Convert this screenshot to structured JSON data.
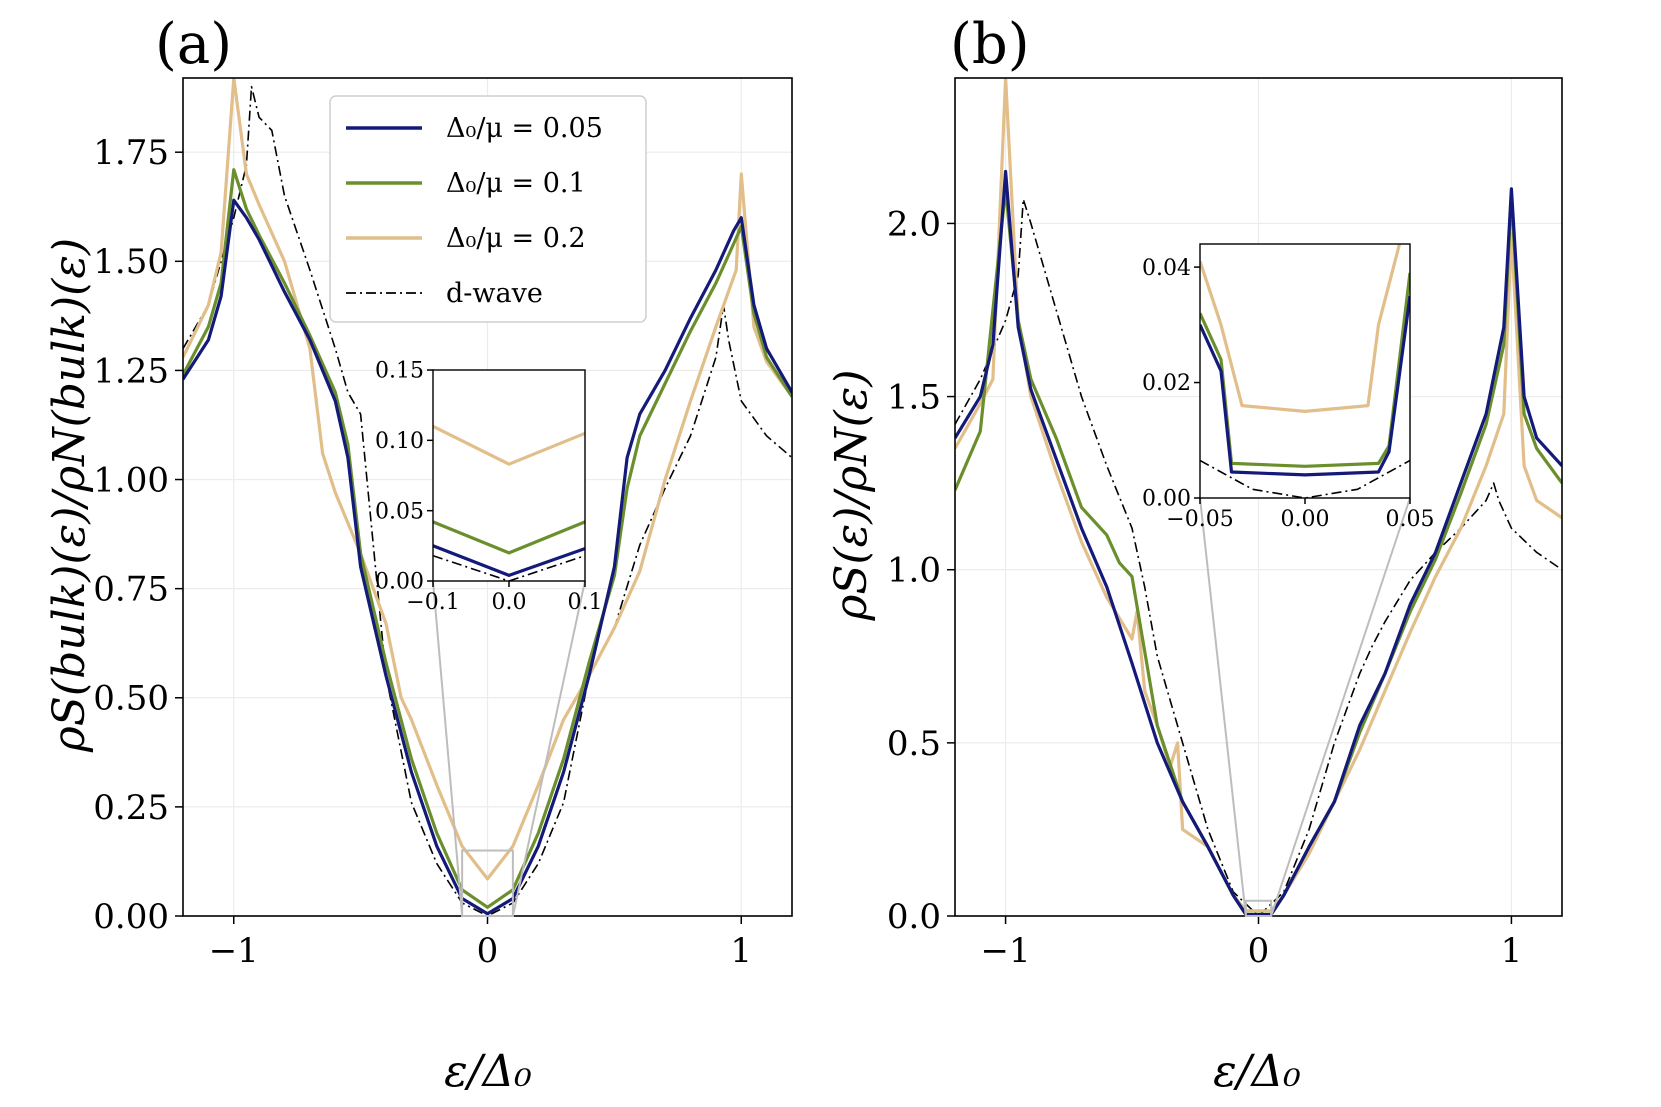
{
  "figure": {
    "panels": [
      "(a)",
      "(b)"
    ],
    "legend": {
      "entries": [
        "Δ₀/μ = 0.05",
        "Δ₀/μ = 0.1",
        "Δ₀/μ = 0.2",
        "d-wave"
      ],
      "colors": [
        "#141a7a",
        "#6a8f2c",
        "#e1be8a",
        "#000000"
      ],
      "styles": [
        "solid",
        "solid",
        "solid",
        "dashdot"
      ]
    }
  },
  "chart_data": [
    {
      "type": "line",
      "panel": "(a)",
      "xlabel": "ε/Δ₀",
      "ylabel": "ρS(bulk)(ε)/ρN(bulk)(ε)",
      "xlim": [
        -1.2,
        1.2
      ],
      "ylim": [
        0,
        1.92
      ],
      "xticks": [
        "−1",
        "0",
        "1"
      ],
      "yticks": [
        "0.00",
        "0.25",
        "0.50",
        "0.75",
        "1.00",
        "1.25",
        "1.50",
        "1.75"
      ],
      "grid": true,
      "legend_position": "upper-center",
      "series": [
        {
          "name": "Δ₀/μ = 0.05",
          "color": "#141a7a",
          "x": [
            -1.2,
            -1.1,
            -1.05,
            -1.0,
            -0.95,
            -0.9,
            -0.8,
            -0.7,
            -0.6,
            -0.55,
            -0.5,
            -0.4,
            -0.3,
            -0.2,
            -0.1,
            0,
            0.1,
            0.2,
            0.3,
            0.4,
            0.5,
            0.55,
            0.6,
            0.7,
            0.8,
            0.9,
            0.97,
            1.0,
            1.05,
            1.1,
            1.2
          ],
          "y": [
            1.23,
            1.32,
            1.42,
            1.64,
            1.6,
            1.55,
            1.43,
            1.32,
            1.18,
            1.05,
            0.8,
            0.55,
            0.33,
            0.16,
            0.04,
            0.005,
            0.04,
            0.16,
            0.33,
            0.55,
            0.8,
            1.05,
            1.15,
            1.25,
            1.37,
            1.48,
            1.57,
            1.6,
            1.4,
            1.3,
            1.2
          ]
        },
        {
          "name": "Δ₀/μ = 0.1",
          "color": "#6a8f2c",
          "x": [
            -1.2,
            -1.1,
            -1.05,
            -1.0,
            -0.95,
            -0.9,
            -0.8,
            -0.7,
            -0.6,
            -0.55,
            -0.5,
            -0.4,
            -0.3,
            -0.2,
            -0.1,
            0,
            0.1,
            0.2,
            0.3,
            0.4,
            0.5,
            0.55,
            0.6,
            0.7,
            0.8,
            0.9,
            0.97,
            1.0,
            1.05,
            1.1,
            1.2
          ],
          "y": [
            1.24,
            1.35,
            1.45,
            1.71,
            1.62,
            1.56,
            1.45,
            1.33,
            1.2,
            1.08,
            0.83,
            0.58,
            0.36,
            0.19,
            0.06,
            0.02,
            0.06,
            0.19,
            0.36,
            0.58,
            0.78,
            0.98,
            1.1,
            1.22,
            1.34,
            1.45,
            1.54,
            1.58,
            1.38,
            1.28,
            1.19
          ]
        },
        {
          "name": "Δ₀/μ = 0.2",
          "color": "#e1be8a",
          "x": [
            -1.2,
            -1.1,
            -1.05,
            -1.0,
            -0.95,
            -0.9,
            -0.8,
            -0.7,
            -0.65,
            -0.6,
            -0.5,
            -0.4,
            -0.34,
            -0.3,
            -0.2,
            -0.1,
            0,
            0.1,
            0.2,
            0.3,
            0.4,
            0.5,
            0.6,
            0.7,
            0.8,
            0.9,
            0.98,
            1.0,
            1.05,
            1.1,
            1.2
          ],
          "y": [
            1.28,
            1.4,
            1.52,
            1.92,
            1.7,
            1.63,
            1.5,
            1.3,
            1.06,
            0.97,
            0.83,
            0.67,
            0.5,
            0.45,
            0.3,
            0.16,
            0.085,
            0.16,
            0.3,
            0.45,
            0.55,
            0.66,
            0.79,
            1.0,
            1.18,
            1.35,
            1.48,
            1.7,
            1.35,
            1.27,
            1.19
          ]
        },
        {
          "name": "d-wave",
          "color": "#000000",
          "dash": true,
          "x": [
            -1.2,
            -1.1,
            -1.0,
            -0.95,
            -0.93,
            -0.9,
            -0.85,
            -0.8,
            -0.7,
            -0.6,
            -0.55,
            -0.5,
            -0.4,
            -0.3,
            -0.2,
            -0.1,
            0,
            0.1,
            0.2,
            0.3,
            0.4,
            0.5,
            0.6,
            0.7,
            0.8,
            0.9,
            0.93,
            0.95,
            1.0,
            1.1,
            1.2
          ],
          "y": [
            1.3,
            1.4,
            1.6,
            1.72,
            1.9,
            1.83,
            1.8,
            1.65,
            1.48,
            1.3,
            1.2,
            1.15,
            0.55,
            0.26,
            0.12,
            0.03,
            0.0,
            0.03,
            0.12,
            0.26,
            0.55,
            0.66,
            0.85,
            0.98,
            1.1,
            1.28,
            1.4,
            1.32,
            1.18,
            1.1,
            1.05
          ]
        }
      ],
      "inset": {
        "xlim": [
          -0.1,
          0.1
        ],
        "ylim": [
          0,
          0.15
        ],
        "xticks": [
          "−0.1",
          "0.0",
          "0.1"
        ],
        "yticks": [
          "0.00",
          "0.05",
          "0.10",
          "0.15"
        ],
        "series": [
          {
            "name": "Δ₀/μ = 0.05",
            "x": [
              -0.1,
              0,
              0.1
            ],
            "y": [
              0.025,
              0.004,
              0.023
            ]
          },
          {
            "name": "Δ₀/μ = 0.1",
            "x": [
              -0.1,
              0,
              0.1
            ],
            "y": [
              0.042,
              0.02,
              0.042
            ]
          },
          {
            "name": "Δ₀/μ = 0.2",
            "x": [
              -0.1,
              0,
              0.1
            ],
            "y": [
              0.11,
              0.083,
              0.105
            ]
          },
          {
            "name": "d-wave",
            "x": [
              -0.1,
              0,
              0.1
            ],
            "y": [
              0.018,
              0.0,
              0.018
            ]
          }
        ]
      }
    },
    {
      "type": "line",
      "panel": "(b)",
      "xlabel": "ε/Δ₀",
      "ylabel": "ρS(ε)/ρN(ε)",
      "xlim": [
        -1.2,
        1.2
      ],
      "ylim": [
        0,
        2.42
      ],
      "xticks": [
        "−1",
        "0",
        "1"
      ],
      "yticks": [
        "0.0",
        "0.5",
        "1.0",
        "1.5",
        "2.0"
      ],
      "grid": true,
      "series": [
        {
          "name": "Δ₀/μ = 0.05",
          "color": "#141a7a",
          "x": [
            -1.2,
            -1.1,
            -1.05,
            -1.0,
            -0.95,
            -0.9,
            -0.8,
            -0.7,
            -0.6,
            -0.5,
            -0.4,
            -0.3,
            -0.2,
            -0.1,
            -0.05,
            0,
            0.05,
            0.1,
            0.2,
            0.3,
            0.4,
            0.5,
            0.6,
            0.7,
            0.8,
            0.9,
            0.97,
            1.0,
            1.05,
            1.1,
            1.2
          ],
          "y": [
            1.38,
            1.5,
            1.65,
            2.15,
            1.7,
            1.52,
            1.32,
            1.12,
            0.95,
            0.73,
            0.5,
            0.33,
            0.2,
            0.06,
            0.004,
            0.004,
            0.004,
            0.06,
            0.2,
            0.33,
            0.55,
            0.7,
            0.9,
            1.05,
            1.25,
            1.45,
            1.7,
            2.1,
            1.5,
            1.38,
            1.3
          ]
        },
        {
          "name": "Δ₀/μ = 0.1",
          "color": "#6a8f2c",
          "x": [
            -1.2,
            -1.1,
            -1.05,
            -1.0,
            -0.95,
            -0.9,
            -0.8,
            -0.7,
            -0.6,
            -0.55,
            -0.5,
            -0.4,
            -0.3,
            -0.2,
            -0.1,
            -0.05,
            0,
            0.05,
            0.1,
            0.2,
            0.3,
            0.4,
            0.5,
            0.6,
            0.7,
            0.8,
            0.9,
            0.97,
            1.0,
            1.05,
            1.1,
            1.2
          ],
          "y": [
            1.23,
            1.4,
            1.75,
            2.1,
            1.72,
            1.55,
            1.38,
            1.18,
            1.1,
            1.02,
            0.98,
            0.55,
            0.33,
            0.2,
            0.06,
            0.005,
            0.005,
            0.005,
            0.06,
            0.2,
            0.33,
            0.53,
            0.7,
            0.88,
            1.03,
            1.22,
            1.42,
            1.65,
            2.08,
            1.45,
            1.35,
            1.25
          ]
        },
        {
          "name": "Δ₀/μ = 0.2",
          "color": "#e1be8a",
          "x": [
            -1.2,
            -1.1,
            -1.05,
            -1.0,
            -0.95,
            -0.9,
            -0.8,
            -0.7,
            -0.6,
            -0.5,
            -0.48,
            -0.45,
            -0.4,
            -0.35,
            -0.32,
            -0.3,
            -0.2,
            -0.1,
            -0.05,
            0,
            0.05,
            0.1,
            0.2,
            0.3,
            0.4,
            0.5,
            0.6,
            0.7,
            0.8,
            0.9,
            0.97,
            1.0,
            1.05,
            1.1,
            1.2
          ],
          "y": [
            1.35,
            1.48,
            1.55,
            2.42,
            1.72,
            1.5,
            1.28,
            1.08,
            0.92,
            0.8,
            0.88,
            0.65,
            0.55,
            0.43,
            0.5,
            0.25,
            0.2,
            0.06,
            0.015,
            0.015,
            0.015,
            0.06,
            0.18,
            0.33,
            0.48,
            0.65,
            0.82,
            0.98,
            1.12,
            1.3,
            1.45,
            1.97,
            1.3,
            1.2,
            1.15
          ]
        },
        {
          "name": "d-wave",
          "color": "#000000",
          "dash": true,
          "x": [
            -1.2,
            -1.1,
            -1.0,
            -0.95,
            -0.93,
            -0.9,
            -0.8,
            -0.7,
            -0.6,
            -0.5,
            -0.45,
            -0.4,
            -0.3,
            -0.2,
            -0.1,
            0,
            0.1,
            0.2,
            0.3,
            0.4,
            0.45,
            0.5,
            0.6,
            0.7,
            0.8,
            0.9,
            0.93,
            0.95,
            1.0,
            1.1,
            1.2
          ],
          "y": [
            1.42,
            1.55,
            1.72,
            1.85,
            2.07,
            2.0,
            1.75,
            1.5,
            1.3,
            1.12,
            0.95,
            0.75,
            0.5,
            0.25,
            0.07,
            0.0,
            0.07,
            0.25,
            0.5,
            0.7,
            0.78,
            0.85,
            0.97,
            1.05,
            1.12,
            1.2,
            1.25,
            1.2,
            1.12,
            1.05,
            1.0
          ]
        }
      ],
      "inset": {
        "xlim": [
          -0.05,
          0.05
        ],
        "ylim": [
          0,
          0.044
        ],
        "xticks": [
          "−0.05",
          "0.00",
          "0.05"
        ],
        "yticks": [
          "0.00",
          "0.02",
          "0.04"
        ],
        "series": [
          {
            "name": "Δ₀/μ = 0.05",
            "x": [
              -0.05,
              -0.04,
              -0.035,
              0,
              0.035,
              0.04,
              0.05
            ],
            "y": [
              0.03,
              0.022,
              0.0045,
              0.004,
              0.0045,
              0.008,
              0.035
            ]
          },
          {
            "name": "Δ₀/μ = 0.1",
            "x": [
              -0.05,
              -0.04,
              -0.035,
              0,
              0.035,
              0.04,
              0.05
            ],
            "y": [
              0.032,
              0.024,
              0.006,
              0.0055,
              0.006,
              0.009,
              0.039
            ]
          },
          {
            "name": "Δ₀/μ = 0.2",
            "x": [
              -0.05,
              -0.04,
              -0.03,
              0,
              0.03,
              0.035,
              0.045
            ],
            "y": [
              0.041,
              0.03,
              0.016,
              0.015,
              0.016,
              0.03,
              0.044
            ]
          },
          {
            "name": "d-wave",
            "x": [
              -0.05,
              -0.025,
              0,
              0.025,
              0.05
            ],
            "y": [
              0.0065,
              0.0015,
              0.0,
              0.0015,
              0.0065
            ]
          }
        ]
      }
    }
  ]
}
